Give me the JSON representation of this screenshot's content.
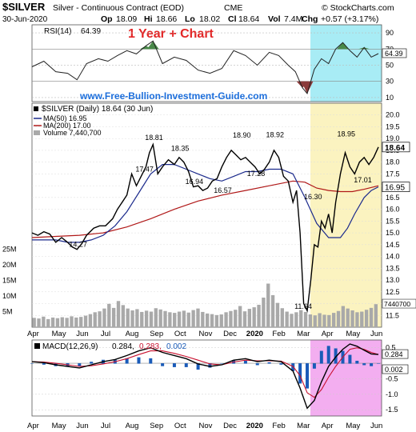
{
  "header": {
    "symbol": "$SILVER",
    "name": "Silver - Continuous Contract (EOD)",
    "exchange": "CME",
    "watermark": "© StockCharts.com",
    "date": "30-Jun-2020",
    "open_label": "Op",
    "open": "18.09",
    "high_label": "Hi",
    "high": "18.66",
    "low_label": "Lo",
    "low": "18.02",
    "close_label": "Cl",
    "close": "18.64",
    "vol_label": "Vol",
    "vol": "7.4M",
    "chg_label": "Chg",
    "chg": "+0.57 (+3.17%)"
  },
  "overlays": {
    "banner": "1 Year + Chart",
    "site": "www.Free-Bullion-Investment-Guide.com"
  },
  "legend": {
    "title": "$SILVER (Daily) 18.64 (30 Jun)",
    "ma50": "MA(50) 16.95",
    "ma200": "MA(200) 17.00",
    "volume": "Volume 7,440,700"
  },
  "rsi_legend": {
    "label": "RSI(14)",
    "value": "64.39"
  },
  "macd_legend": {
    "label": "MACD(12,26,9)",
    "v1": "0.284,",
    "v2": "0.283,",
    "v3": "0.002"
  },
  "colors": {
    "price": "#000000",
    "ma50": "#1b2a8c",
    "ma200": "#b01818",
    "down_candle": "#c8102e",
    "volume": "#a9a9a9",
    "rsi_overbought_fill": "#4a8a4a",
    "rsi_oversold_fill": "#8b3a3a",
    "highlight_yellow": "#fbf3c0",
    "highlight_cyan": "#a8ecf5",
    "highlight_magenta": "#f3aef0",
    "banner": "#e32626",
    "site": "#1d6fdc",
    "macd_signal": "#c8102e",
    "macd_hist": "#1a5bb8"
  },
  "chart_data": {
    "type": "line",
    "title": "$SILVER (Daily) 18.64 (30 Jun)",
    "x_tick_labels": [
      "Apr",
      "May",
      "Jun",
      "Jul",
      "Aug",
      "Sep",
      "Oct",
      "Nov",
      "Dec",
      "2020",
      "Feb",
      "Mar",
      "Apr",
      "May",
      "Jun"
    ],
    "price_axis": {
      "ylim": [
        11.0,
        20.5
      ],
      "ticks": [
        11.5,
        12.0,
        12.5,
        13.0,
        13.5,
        14.0,
        14.5,
        15.0,
        15.5,
        16.0,
        16.5,
        17.0,
        17.5,
        18.0,
        18.5,
        19.0,
        19.5,
        20.0
      ],
      "labels": [
        "11.5",
        "12.0",
        "12.5",
        "13.0",
        "13.5",
        "14.0",
        "14.5",
        "15.0",
        "15.5",
        "16.0",
        "16.5",
        "17.0",
        "17.5",
        "18.0",
        "18.5",
        "19.0",
        "19.5",
        "20.0"
      ]
    },
    "volume_axis": {
      "ylim": [
        0,
        28
      ],
      "unit": "M",
      "ticks": [
        5,
        10,
        15,
        20,
        25
      ],
      "labels": [
        "5M",
        "10M",
        "15M",
        "20M",
        "25M"
      ]
    },
    "rsi_axis": {
      "ylim": [
        5,
        100
      ],
      "ticks": [
        10,
        30,
        50,
        70,
        90
      ],
      "labels": [
        "10",
        "30",
        "50",
        "70",
        "90"
      ]
    },
    "macd_axis": {
      "ylim": [
        -1.7,
        0.75
      ],
      "ticks": [
        -1.5,
        -1.0,
        -0.5,
        0.5
      ],
      "labels": [
        "-1.5",
        "-1.0",
        "-0.5",
        "0.5"
      ]
    },
    "price_series": {
      "name": "$SILVER",
      "x": [
        0,
        0.25,
        0.5,
        0.75,
        1.0,
        1.25,
        1.5,
        1.7,
        1.9,
        2.1,
        2.3,
        2.6,
        2.85,
        3.1,
        3.4,
        3.6,
        3.8,
        4.0,
        4.2,
        4.4,
        4.6,
        4.8,
        4.95,
        5.1,
        5.3,
        5.5,
        5.75,
        6.0,
        6.2,
        6.4,
        6.6,
        6.8,
        7.0,
        7.2,
        7.4,
        7.6,
        7.8,
        8.0,
        8.2,
        8.4,
        8.6,
        8.8,
        9.0,
        9.2,
        9.4,
        9.6,
        9.8,
        10.0,
        10.2,
        10.4,
        10.6,
        10.8,
        11.0,
        11.15,
        11.3,
        11.45,
        11.6,
        11.75,
        11.9,
        12.05,
        12.2,
        12.35,
        12.5,
        12.65,
        12.8,
        13.0,
        13.2,
        13.4,
        13.6,
        13.8,
        14.0,
        14.2,
        14.4,
        14.6
      ],
      "values": [
        15.0,
        14.9,
        15.05,
        14.95,
        14.6,
        14.8,
        14.6,
        14.4,
        14.3,
        14.55,
        14.9,
        15.2,
        15.3,
        15.3,
        15.6,
        16.0,
        16.3,
        16.6,
        17.5,
        17.0,
        17.4,
        17.8,
        18.4,
        18.75,
        17.5,
        17.8,
        18.1,
        17.9,
        18.2,
        18.0,
        17.6,
        16.95,
        17.0,
        16.8,
        16.9,
        17.2,
        17.3,
        17.8,
        18.2,
        18.5,
        18.3,
        18.1,
        18.2,
        18.0,
        17.8,
        17.5,
        17.7,
        18.0,
        18.5,
        18.2,
        17.4,
        17.2,
        16.3,
        16.8,
        15.0,
        12.0,
        11.7,
        13.0,
        14.5,
        14.4,
        15.5,
        15.2,
        15.8,
        15.0,
        16.3,
        17.5,
        18.4,
        17.8,
        17.5,
        18.0,
        18.2,
        17.9,
        18.2,
        18.64
      ]
    },
    "ma50_series": {
      "name": "MA(50)",
      "x": [
        0,
        1.0,
        1.5,
        2.0,
        2.5,
        3.0,
        3.5,
        4.0,
        4.5,
        5.0,
        5.5,
        6.0,
        6.5,
        7.0,
        7.5,
        8.0,
        8.5,
        9.0,
        9.5,
        10.0,
        10.5,
        11.0,
        11.5,
        12.0,
        12.5,
        13.0,
        13.3,
        13.6,
        14.0,
        14.3,
        14.6
      ],
      "values": [
        14.7,
        14.7,
        14.6,
        14.6,
        14.7,
        14.9,
        15.3,
        15.9,
        16.7,
        17.5,
        17.9,
        17.9,
        17.7,
        17.5,
        17.3,
        17.2,
        17.4,
        17.6,
        17.6,
        17.7,
        17.7,
        17.5,
        16.5,
        15.4,
        14.8,
        14.8,
        15.2,
        15.8,
        16.5,
        16.8,
        16.95
      ]
    },
    "ma200_series": {
      "name": "MA(200)",
      "x": [
        0,
        1.0,
        2.0,
        3.0,
        4.0,
        5.0,
        6.0,
        7.0,
        8.0,
        9.0,
        10.0,
        11.0,
        11.5,
        12.0,
        12.5,
        13.0,
        13.5,
        14.0,
        14.6
      ],
      "values": [
        14.8,
        14.85,
        14.9,
        15.0,
        15.25,
        15.6,
        16.0,
        16.35,
        16.6,
        16.8,
        17.0,
        17.2,
        17.15,
        16.9,
        16.8,
        16.75,
        16.75,
        16.85,
        17.0
      ]
    },
    "price_annotations": [
      {
        "label": "14.27",
        "x": 1.9,
        "value": 14.27
      },
      {
        "label": "18.81",
        "x": 5.1,
        "value": 18.81
      },
      {
        "label": "17.47",
        "x": 4.7,
        "value": 17.47
      },
      {
        "label": "18.35",
        "x": 6.2,
        "value": 18.35
      },
      {
        "label": "16.94",
        "x": 6.8,
        "value": 16.94
      },
      {
        "label": "16.57",
        "x": 8.0,
        "value": 16.57
      },
      {
        "label": "18.90",
        "x": 8.8,
        "value": 18.9
      },
      {
        "label": "18.92",
        "x": 10.2,
        "value": 18.92
      },
      {
        "label": "17.28",
        "x": 9.4,
        "value": 17.28
      },
      {
        "label": "16.30",
        "x": 11.8,
        "value": 16.3
      },
      {
        "label": "11.64",
        "x": 11.4,
        "value": 11.64
      },
      {
        "label": "18.95",
        "x": 13.2,
        "value": 18.95
      },
      {
        "label": "17.01",
        "x": 13.9,
        "value": 17.01
      }
    ],
    "price_tags": [
      {
        "label": "18.64",
        "value": 18.64
      },
      {
        "label": "16.95",
        "value": 16.95
      }
    ],
    "volume_tag": {
      "label": "7440700",
      "value": 7.44
    },
    "rsi_tag": {
      "label": "64.39",
      "value": 64.39
    },
    "macd_tags": [
      {
        "label": "0.284",
        "value": 0.284
      },
      {
        "label": "0.002",
        "value": 0.002
      }
    ],
    "volume_values": [
      3,
      2.8,
      3.4,
      2.6,
      3.1,
      2.9,
      3.2,
      3.0,
      3.5,
      3.1,
      3.3,
      3.7,
      4.2,
      4.8,
      5.1,
      6.0,
      7.5,
      6.2,
      8.4,
      7.1,
      6.0,
      5.4,
      5.8,
      4.9,
      5.3,
      5.0,
      6.1,
      5.7,
      5.2,
      4.8,
      4.6,
      5.0,
      5.3,
      4.7,
      5.5,
      6.0,
      4.9,
      4.4,
      4.2,
      3.9,
      4.1,
      4.8,
      5.2,
      5.6,
      6.8,
      5.1,
      5.9,
      6.4,
      7.2,
      9.5,
      14.0,
      10.3,
      7.8,
      6.1,
      5.0,
      4.3,
      4.8,
      5.5,
      4.9,
      4.1,
      3.8,
      4.5,
      4.0,
      3.9,
      4.6,
      5.2,
      6.8,
      6.0,
      5.4,
      4.8,
      5.0,
      5.6,
      6.2,
      7.4
    ],
    "rsi_series": {
      "name": "RSI(14)",
      "x": [
        0,
        0.5,
        1.0,
        1.5,
        1.9,
        2.3,
        2.8,
        3.2,
        3.6,
        4.0,
        4.4,
        4.8,
        5.1,
        5.5,
        6.0,
        6.5,
        7.0,
        7.5,
        8.0,
        8.5,
        9.0,
        9.5,
        10.0,
        10.4,
        10.8,
        11.1,
        11.4,
        11.6,
        11.9,
        12.2,
        12.5,
        12.8,
        13.1,
        13.4,
        13.7,
        14.0,
        14.3,
        14.6
      ],
      "values": [
        48,
        55,
        42,
        40,
        32,
        52,
        58,
        55,
        62,
        68,
        64,
        74,
        80,
        52,
        60,
        56,
        44,
        40,
        46,
        68,
        62,
        50,
        66,
        62,
        50,
        42,
        22,
        15,
        45,
        58,
        52,
        70,
        78,
        68,
        60,
        72,
        60,
        64.39
      ]
    },
    "macd_series": {
      "name": "MACD",
      "x": [
        0,
        0.5,
        1.0,
        1.5,
        2.0,
        2.5,
        3.0,
        3.5,
        4.0,
        4.5,
        5.0,
        5.5,
        6.0,
        6.5,
        7.0,
        7.5,
        8.0,
        8.5,
        9.0,
        9.5,
        10.0,
        10.5,
        11.0,
        11.3,
        11.6,
        11.9,
        12.2,
        12.5,
        12.8,
        13.1,
        13.4,
        13.7,
        14.0,
        14.3,
        14.6
      ],
      "values": [
        0.05,
        0.02,
        -0.05,
        -0.1,
        -0.15,
        -0.05,
        0.05,
        0.12,
        0.25,
        0.4,
        0.5,
        0.35,
        0.25,
        0.15,
        -0.02,
        -0.1,
        -0.05,
        0.1,
        0.15,
        0.05,
        0.1,
        0.05,
        -0.25,
        -0.8,
        -1.45,
        -1.2,
        -0.6,
        -0.1,
        0.2,
        0.45,
        0.62,
        0.55,
        0.42,
        0.3,
        0.284
      ]
    },
    "macd_signal_series": {
      "name": "Signal",
      "x": [
        0,
        0.5,
        1.0,
        1.5,
        2.0,
        2.5,
        3.0,
        3.5,
        4.0,
        4.5,
        5.0,
        5.5,
        6.0,
        6.5,
        7.0,
        7.5,
        8.0,
        8.5,
        9.0,
        9.5,
        10.0,
        10.5,
        11.0,
        11.3,
        11.6,
        11.9,
        12.2,
        12.5,
        12.8,
        13.1,
        13.4,
        13.7,
        14.0,
        14.3,
        14.6
      ],
      "values": [
        0.05,
        0.04,
        0.0,
        -0.05,
        -0.1,
        -0.08,
        -0.02,
        0.05,
        0.15,
        0.28,
        0.4,
        0.4,
        0.32,
        0.22,
        0.1,
        -0.02,
        -0.05,
        0.04,
        0.1,
        0.08,
        0.08,
        0.07,
        -0.1,
        -0.4,
        -0.95,
        -1.1,
        -0.85,
        -0.45,
        -0.1,
        0.2,
        0.45,
        0.5,
        0.45,
        0.35,
        0.283
      ]
    }
  }
}
